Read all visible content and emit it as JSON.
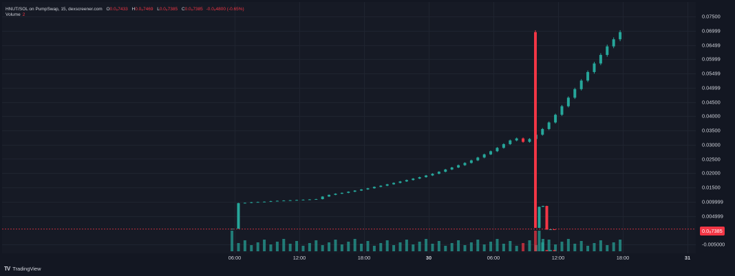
{
  "legend": {
    "symbol": "HNUT/SOL on PumpSwap, 15, dexscreener.com",
    "open_label": "O",
    "open_value": "0.0₈7433",
    "high_label": "H",
    "high_value": "0.0₈7469",
    "low_label": "L",
    "low_value": "0.0₈7385",
    "close_label": "C",
    "close_value": "0.0₈7385",
    "change": "-0.0₈4800 (-0.65%)",
    "volume_label": "Volume",
    "volume_value": "2"
  },
  "last_price_badge": "0.0₈7385",
  "footer": {
    "brand": "TradingView"
  },
  "colors": {
    "up": "#26a69a",
    "down": "#f23645",
    "background": "#131722",
    "grid": "#1f2430",
    "text": "#d1d4dc"
  },
  "chart_data": {
    "type": "candlestick",
    "symbol": "HNUT/SOL",
    "exchange": "PumpSwap",
    "interval": "15",
    "y_axis": {
      "range": [
        -0.0065,
        0.0765
      ],
      "tick_labels": [
        "0.07500",
        "0.06999",
        "0.06499",
        "0.05999",
        "0.05499",
        "0.04999",
        "0.04500",
        "0.04000",
        "0.03500",
        "0.03000",
        "0.02500",
        "0.02000",
        "0.01500",
        "0.009999",
        "0.004999",
        "-0.005000"
      ],
      "tick_values": [
        0.075,
        0.06999,
        0.06499,
        0.05999,
        0.05499,
        0.04999,
        0.045,
        0.04,
        0.035,
        0.03,
        0.025,
        0.02,
        0.015,
        0.009999,
        0.004999,
        -0.005
      ]
    },
    "x_axis": {
      "tick_labels": [
        "06:00",
        "12:00",
        "18:00",
        "30",
        "06:00",
        "12:00",
        "18:00",
        "31"
      ],
      "tick_times_hours": [
        6,
        12,
        18,
        24,
        30,
        36,
        42,
        48
      ],
      "range_hours": [
        0,
        49
      ]
    },
    "close_series": {
      "description": "approximate closing prices read from the chart, 15-minute bars",
      "start_time_hours": 5.75,
      "values": [
        0.0005,
        0.0095,
        0.0096,
        0.0098,
        0.0099,
        0.01,
        0.0102,
        0.0103,
        0.0104,
        0.0105,
        0.0106,
        0.0107,
        0.0108,
        0.0109,
        0.0118,
        0.0124,
        0.0128,
        0.0131,
        0.0135,
        0.0139,
        0.0143,
        0.0147,
        0.0152,
        0.0156,
        0.0161,
        0.0166,
        0.0171,
        0.0176,
        0.0181,
        0.0186,
        0.0192,
        0.0198,
        0.0205,
        0.0213,
        0.022,
        0.0228,
        0.0236,
        0.0245,
        0.0255,
        0.0266,
        0.0277,
        0.0289,
        0.0302,
        0.0315,
        0.0322,
        0.031,
        0.032,
        0.0335,
        0.0355,
        0.0378,
        0.0405,
        0.0435,
        0.0465,
        0.0495,
        0.0525,
        0.0555,
        0.0585,
        0.0615,
        0.0645,
        0.067,
        0.0695,
        0.0008,
        0.0082,
        0.0085,
        0.0002,
        0.0003,
        0.0002
      ]
    }
  }
}
